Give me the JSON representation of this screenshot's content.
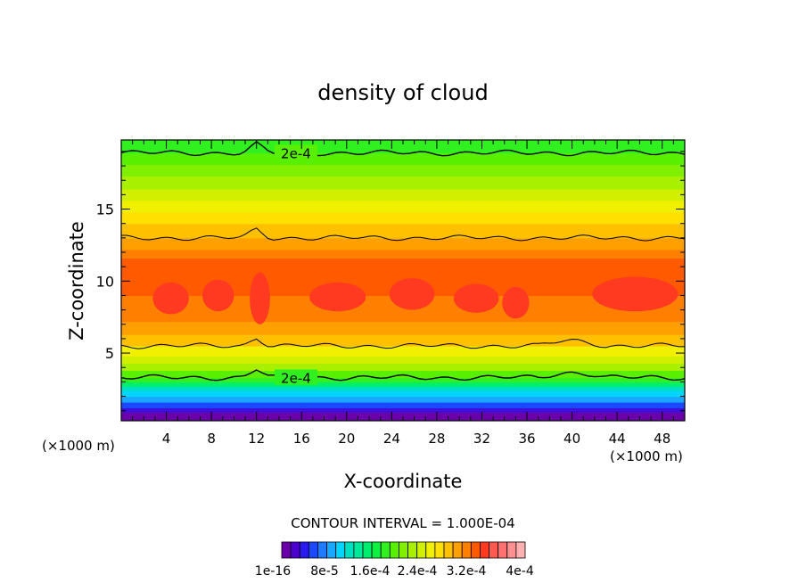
{
  "chart_data": {
    "type": "heatmap",
    "title": "density of cloud",
    "xlabel": "X-coordinate",
    "ylabel": "Z-coordinate",
    "x_unit_left": "(×1000 m)",
    "x_unit_right": "(×1000 m)",
    "xlim": [
      0,
      50
    ],
    "ylim": [
      0.3,
      19.8
    ],
    "x_ticks": [
      "4",
      "8",
      "12",
      "16",
      "20",
      "24",
      "28",
      "32",
      "36",
      "40",
      "44",
      "48"
    ],
    "x_tick_values": [
      4,
      8,
      12,
      16,
      20,
      24,
      28,
      32,
      36,
      40,
      44,
      48
    ],
    "y_ticks": [
      "5",
      "10",
      "15"
    ],
    "y_tick_values": [
      5,
      10,
      15
    ],
    "contour_interval": "CONTOUR INTERVAL = 1.000E-04",
    "contour_labels": [
      {
        "text": "2e-4",
        "x": 15.5,
        "z": 18.9
      },
      {
        "text": "2e-4",
        "x": 15.5,
        "z": 3.3
      }
    ],
    "contour_lines_z": [
      18.9,
      13.0,
      5.5,
      3.3
    ],
    "colorbar_ticks": [
      "1e-16",
      "8e-5",
      "1.6e-4",
      "2.4e-4",
      "3.2e-4",
      "4e-4"
    ],
    "colorbar_colors": [
      "#6a00aa",
      "#4b00d0",
      "#2a1af0",
      "#1c49ff",
      "#1e7bff",
      "#18a8ff",
      "#00d4ff",
      "#00e0c0",
      "#00e89a",
      "#00ee6e",
      "#10f040",
      "#30f020",
      "#58f000",
      "#80f000",
      "#a8f000",
      "#d0f000",
      "#f0f000",
      "#ffe000",
      "#ffc000",
      "#ffa000",
      "#ff8000",
      "#ff5a00",
      "#ff3a20",
      "#ff5a50",
      "#ff7070",
      "#ff9090",
      "#ffb0b0"
    ],
    "vertical_profile": [
      {
        "z_top": 0.9,
        "color": "#6a00aa"
      },
      {
        "z_top": 1.2,
        "color": "#3d0fd8"
      },
      {
        "z_top": 1.6,
        "color": "#1c49ff"
      },
      {
        "z_top": 2.0,
        "color": "#18a8ff"
      },
      {
        "z_top": 2.4,
        "color": "#00d4ff"
      },
      {
        "z_top": 2.7,
        "color": "#00e0c0"
      },
      {
        "z_top": 3.0,
        "color": "#00ee6e"
      },
      {
        "z_top": 3.3,
        "color": "#30f020"
      },
      {
        "z_top": 3.8,
        "color": "#58f000"
      },
      {
        "z_top": 4.3,
        "color": "#a8f000"
      },
      {
        "z_top": 4.8,
        "color": "#d0f000"
      },
      {
        "z_top": 5.5,
        "color": "#f0f000"
      },
      {
        "z_top": 6.3,
        "color": "#ffc000"
      },
      {
        "z_top": 7.2,
        "color": "#ffa000"
      },
      {
        "z_top": 9.0,
        "color": "#ff8000"
      },
      {
        "z_top": 11.6,
        "color": "#ff5a00"
      },
      {
        "z_top": 12.2,
        "color": "#ff8000"
      },
      {
        "z_top": 13.0,
        "color": "#ffa000"
      },
      {
        "z_top": 14.0,
        "color": "#ffc000"
      },
      {
        "z_top": 14.8,
        "color": "#ffe000"
      },
      {
        "z_top": 15.6,
        "color": "#f0f000"
      },
      {
        "z_top": 16.4,
        "color": "#d0f000"
      },
      {
        "z_top": 17.3,
        "color": "#a8f000"
      },
      {
        "z_top": 18.1,
        "color": "#80f000"
      },
      {
        "z_top": 18.9,
        "color": "#58f000"
      },
      {
        "z_top": 19.8,
        "color": "#30f020"
      }
    ]
  }
}
